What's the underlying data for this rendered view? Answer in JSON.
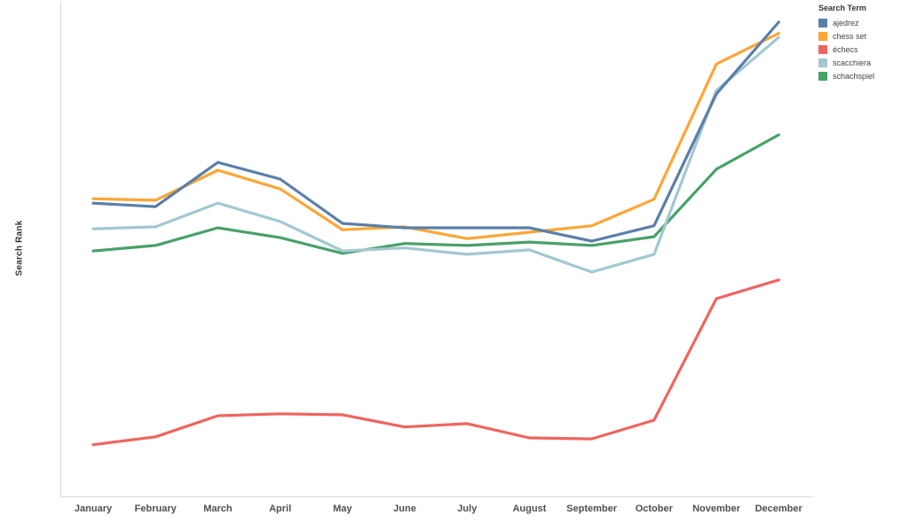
{
  "page": {
    "background": "#ffffff"
  },
  "y_axis": {
    "label": "Search Rank"
  },
  "legend": {
    "title": "Search Term"
  },
  "chart_data": {
    "type": "line",
    "title": "",
    "xlabel": "",
    "ylabel": "Search Rank",
    "categories": [
      "January",
      "February",
      "March",
      "April",
      "May",
      "June",
      "July",
      "August",
      "September",
      "October",
      "November",
      "December"
    ],
    "ylim": [
      0,
      100
    ],
    "grid": false,
    "y_tick_labels_visible": false,
    "legend_position": "top-right",
    "legend_title": "Search Term",
    "series": [
      {
        "name": "ajedrez",
        "color": "#5a7fa9",
        "values": [
          59.6,
          58.9,
          67.9,
          64.5,
          55.5,
          54.6,
          54.6,
          54.6,
          51.9,
          55.0,
          81.8,
          96.4
        ]
      },
      {
        "name": "chess set",
        "color": "#fca636",
        "values": [
          60.5,
          60.2,
          66.3,
          62.5,
          54.2,
          54.8,
          52.4,
          53.7,
          55.0,
          60.4,
          87.9,
          94.1
        ]
      },
      {
        "name": "échecs",
        "color": "#ee655f",
        "values": [
          10.5,
          12.1,
          16.4,
          16.8,
          16.6,
          14.1,
          14.8,
          11.9,
          11.7,
          15.5,
          40.2,
          44.0
        ]
      },
      {
        "name": "scacchiera",
        "color": "#a2c8d0",
        "values": [
          54.4,
          54.8,
          59.6,
          55.9,
          49.9,
          50.5,
          49.2,
          50.1,
          45.6,
          49.2,
          82.5,
          93.3
        ]
      },
      {
        "name": "schachspiel",
        "color": "#48a169",
        "values": [
          49.9,
          51.0,
          54.6,
          52.6,
          49.4,
          51.4,
          51.0,
          51.7,
          51.0,
          52.8,
          66.5,
          73.5
        ]
      }
    ]
  }
}
